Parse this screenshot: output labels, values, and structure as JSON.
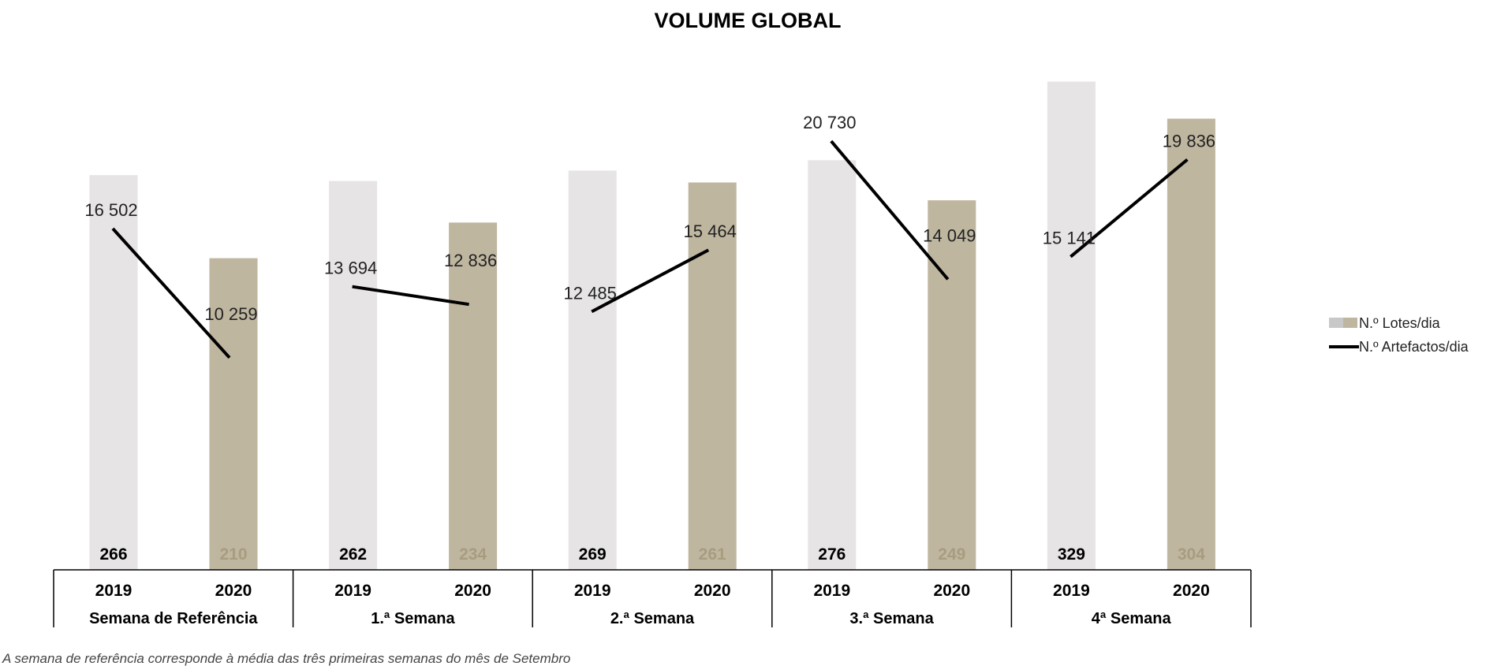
{
  "chart_data": {
    "type": "bar+line",
    "title": "VOLUME GLOBAL",
    "groups": [
      "Semana de Referência",
      "1.ª Semana",
      "2.ª Semana",
      "3.ª Semana",
      "4ª Semana"
    ],
    "years": [
      "2019",
      "2020"
    ],
    "series": [
      {
        "name": "N.º Lotes/dia",
        "type": "bar",
        "values": [
          [
            266,
            210
          ],
          [
            262,
            234
          ],
          [
            269,
            261
          ],
          [
            276,
            249
          ],
          [
            329,
            304
          ]
        ]
      },
      {
        "name": "N.º Artefactos/dia",
        "type": "line",
        "values": [
          [
            16502,
            10259
          ],
          [
            13694,
            12836
          ],
          [
            12485,
            15464
          ],
          [
            20730,
            14049
          ],
          [
            15141,
            19836
          ]
        ],
        "labels": [
          [
            "16 502",
            "10 259"
          ],
          [
            "13 694",
            "12 836"
          ],
          [
            "12 485",
            "15 464"
          ],
          [
            "20 730",
            "14 049"
          ],
          [
            "15 141",
            "19 836"
          ]
        ]
      }
    ],
    "legend_position": "right",
    "grid": false,
    "colors": {
      "bar_2019": "#e6e4e4",
      "bar_2020": "#bfb6a0",
      "label_2020": "#a89c80",
      "line": "#000000",
      "legend_swatch_grey": "#c8c8c8"
    },
    "footnote": "A semana de referência corresponde à média das três primeiras semanas do mês de Setembro"
  }
}
